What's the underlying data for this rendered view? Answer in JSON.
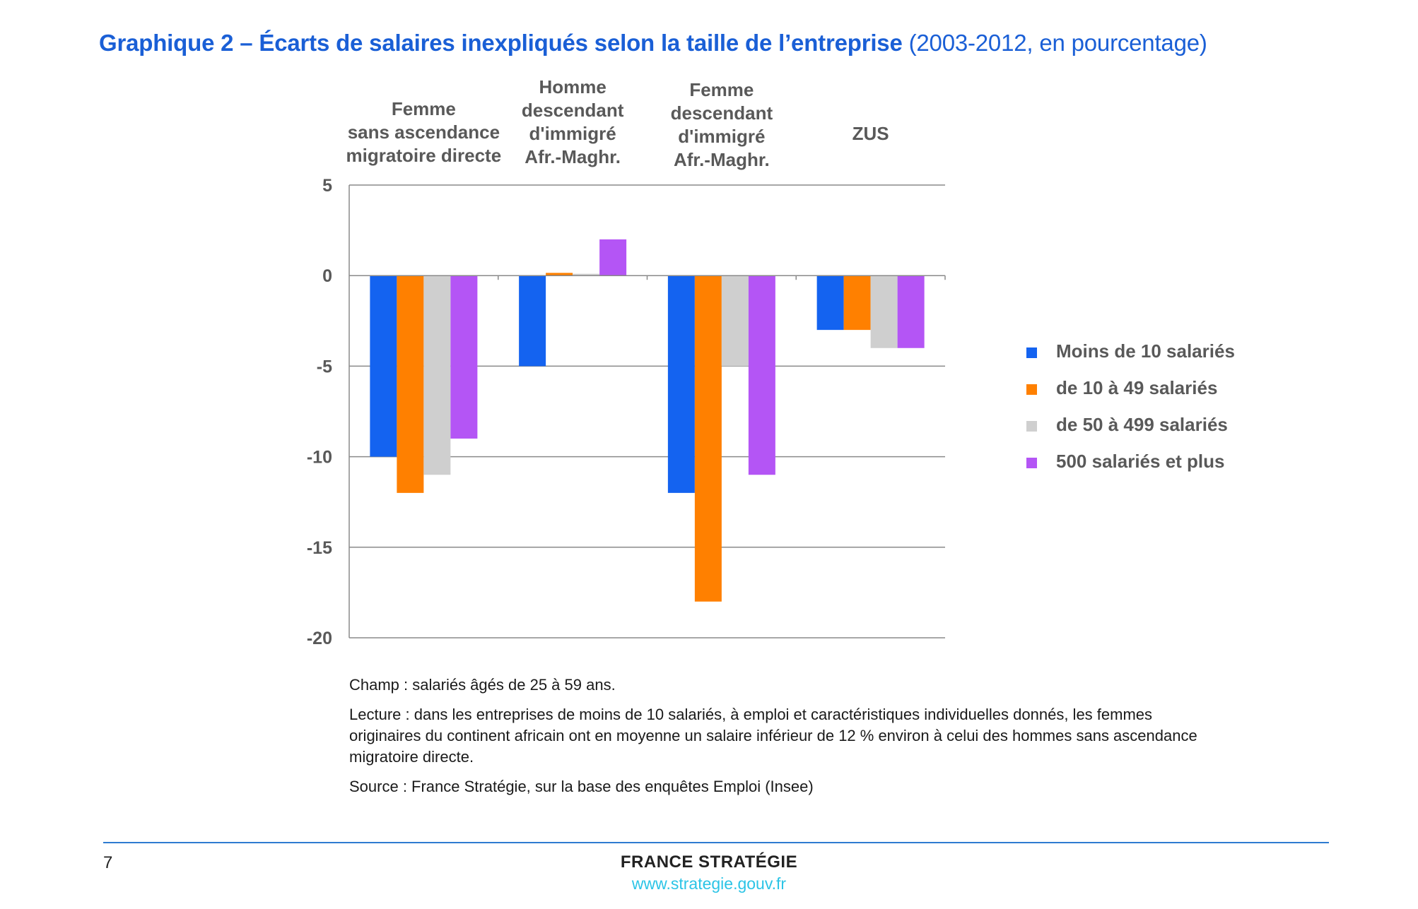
{
  "title": {
    "main": "Graphique 2 – Écarts de salaires inexpliqués selon la taille de l’entreprise",
    "sub": "(2003-2012, en pourcentage)"
  },
  "chart_data": {
    "type": "bar",
    "categories": [
      [
        "Femme",
        "sans ascendance",
        "migratoire  directe"
      ],
      [
        "Homme",
        "descendant",
        "d'immigré",
        "Afr.-Maghr."
      ],
      [
        "Femme",
        "descendant",
        "d'immigré",
        "Afr.-Maghr."
      ],
      [
        "ZUS"
      ]
    ],
    "series": [
      {
        "name": "Moins de 10 salariés",
        "color": "#1463f0",
        "values": [
          -10,
          -5,
          -12,
          -3
        ]
      },
      {
        "name": "de 10 à 49 salariés",
        "color": "#ff8000",
        "values": [
          -12,
          0.15,
          -18,
          -3
        ]
      },
      {
        "name": "de 50 à 499 salariés",
        "color": "#cfcfcf",
        "values": [
          -11,
          0.1,
          -5,
          -4
        ]
      },
      {
        "name": "500 salariés et plus",
        "color": "#b455f5",
        "values": [
          -9,
          2,
          -11,
          -4
        ]
      }
    ],
    "yticks": [
      "5",
      "0",
      "-5",
      "-10",
      "-15",
      "-20"
    ],
    "ylim": [
      -20,
      5
    ],
    "legend_position": "right",
    "grid": true
  },
  "notes": {
    "champ": "Champ : salariés âgés de 25 à 59 ans.",
    "lecture": "Lecture : dans les entreprises de moins de 10 salariés, à emploi et caractéristiques individuelles donnés, les femmes originaires du continent africain ont en moyenne un salaire inférieur de 12 % environ à celui des hommes sans ascendance migratoire directe.",
    "source": "Source : France Stratégie, sur la base des enquêtes Emploi (Insee)"
  },
  "footer": {
    "page": "7",
    "brand": "FRANCE STRATÉGIE",
    "url": "www.strategie.gouv.fr"
  }
}
